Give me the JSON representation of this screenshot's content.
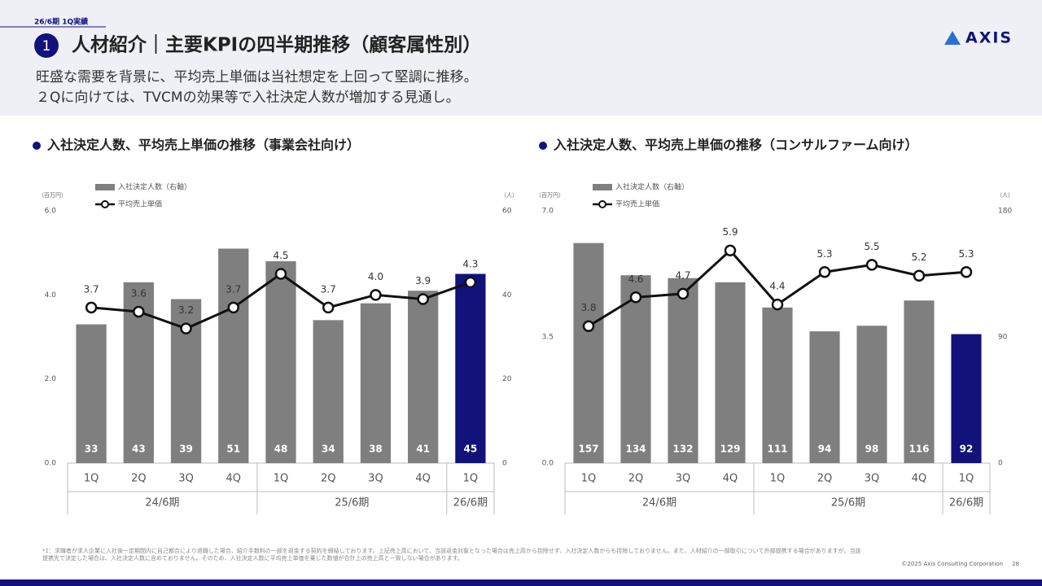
{
  "header": {
    "section": "26/6期 1Q実績",
    "number": "1",
    "title": "人材紹介｜主要KPIの四半期推移（顧客属性別）",
    "subtitle": [
      "旺盛な需要を背景に、平均売上単価は当社想定を上回って堅調に推移。",
      "２Qに向けては、TVCMの効果等で入社決定人数が増加する見通し。"
    ],
    "logo": "AXIS"
  },
  "chart_data": [
    {
      "type": "bar-line",
      "title": "入社決定人数、平均売上単価の推移（事業会社向け）",
      "y_label": "（百万円）",
      "y2_label": "（人）",
      "groups": [
        {
          "name": "24/6期",
          "categories": [
            "1Q",
            "2Q",
            "3Q",
            "4Q"
          ]
        },
        {
          "name": "25/6期",
          "categories": [
            "1Q",
            "2Q",
            "3Q",
            "4Q"
          ]
        },
        {
          "name": "26/6期",
          "categories": [
            "1Q"
          ]
        }
      ],
      "ylim": [
        0,
        6
      ],
      "yticks": [
        {
          "value": 0,
          "label": "0.0"
        },
        {
          "value": 2,
          "label": "2.0"
        },
        {
          "value": 4,
          "label": "4.0"
        },
        {
          "value": 6,
          "label": "6.0"
        }
      ],
      "y2lim": [
        0,
        60
      ],
      "y2ticks": [
        0,
        20,
        40,
        60
      ],
      "series": [
        {
          "name": "入社決定人数（右軸）",
          "type": "bar",
          "axis": "y2",
          "colors": [
            "#7f7f7f",
            "#7f7f7f",
            "#7f7f7f",
            "#7f7f7f",
            "#7f7f7f",
            "#7f7f7f",
            "#7f7f7f",
            "#7f7f7f",
            "#12127a"
          ],
          "values": [
            33,
            43,
            39,
            51,
            48,
            34,
            38,
            41,
            45
          ]
        },
        {
          "name": "平均売上単価",
          "type": "line",
          "axis": "y",
          "color": "#111111",
          "values": [
            3.7,
            3.6,
            3.2,
            3.7,
            4.5,
            3.7,
            4.0,
            3.9,
            4.3
          ],
          "value_labels": [
            "3.7",
            "3.6",
            "3.2",
            "3.7",
            "4.5",
            "3.7",
            "4.0",
            "3.9",
            "4.3"
          ]
        }
      ]
    },
    {
      "type": "bar-line",
      "title": "入社決定人数、平均売上単価の推移（コンサルファーム向け）",
      "y_label": "（百万円）",
      "y2_label": "（人）",
      "groups": [
        {
          "name": "24/6期",
          "categories": [
            "1Q",
            "2Q",
            "3Q",
            "4Q"
          ]
        },
        {
          "name": "25/6期",
          "categories": [
            "1Q",
            "2Q",
            "3Q",
            "4Q"
          ]
        },
        {
          "name": "26/6期",
          "categories": [
            "1Q"
          ]
        }
      ],
      "ylim": [
        0,
        7
      ],
      "yticks": [
        {
          "value": 0,
          "label": "0.0"
        },
        {
          "value": 3.5,
          "label": "3.5"
        },
        {
          "value": 7,
          "label": "7.0"
        }
      ],
      "y2lim": [
        0,
        180
      ],
      "y2ticks": [
        0,
        90,
        180
      ],
      "series": [
        {
          "name": "入社決定人数（右軸）",
          "type": "bar",
          "axis": "y2",
          "colors": [
            "#7f7f7f",
            "#7f7f7f",
            "#7f7f7f",
            "#7f7f7f",
            "#7f7f7f",
            "#7f7f7f",
            "#7f7f7f",
            "#7f7f7f",
            "#12127a"
          ],
          "values": [
            157,
            134,
            132,
            129,
            111,
            94,
            98,
            116,
            92
          ]
        },
        {
          "name": "平均売上単価",
          "type": "line",
          "axis": "y",
          "color": "#111111",
          "values": [
            3.8,
            4.6,
            4.7,
            5.9,
            4.4,
            5.3,
            5.5,
            5.2,
            5.3
          ],
          "value_labels": [
            "3.8",
            "4.6",
            "4.7",
            "5.9",
            "4.4",
            "5.3",
            "5.5",
            "5.2",
            "5.3"
          ]
        }
      ]
    }
  ],
  "footer": {
    "note": "*1：求職者が求人企業に入社後一定期間内に自己都合により退職した場合、紹介手数料の一部を返金する契約を締結しております。上記売上高において、当該返金対象となった場合は売上高から控除せず、入社決定人数からも控除しておりません。また、人材紹介の一部取引について外部提携する場合がありますが、当該提携先で決定した場合は、入社決定人数に含めておりません。そのため、入社決定人数に平均売上単価を乗じた数値が合計上の売上高と一致しない場合があります。",
    "copyright": "©2025 Axis Consulting Corporation",
    "page": "28"
  }
}
